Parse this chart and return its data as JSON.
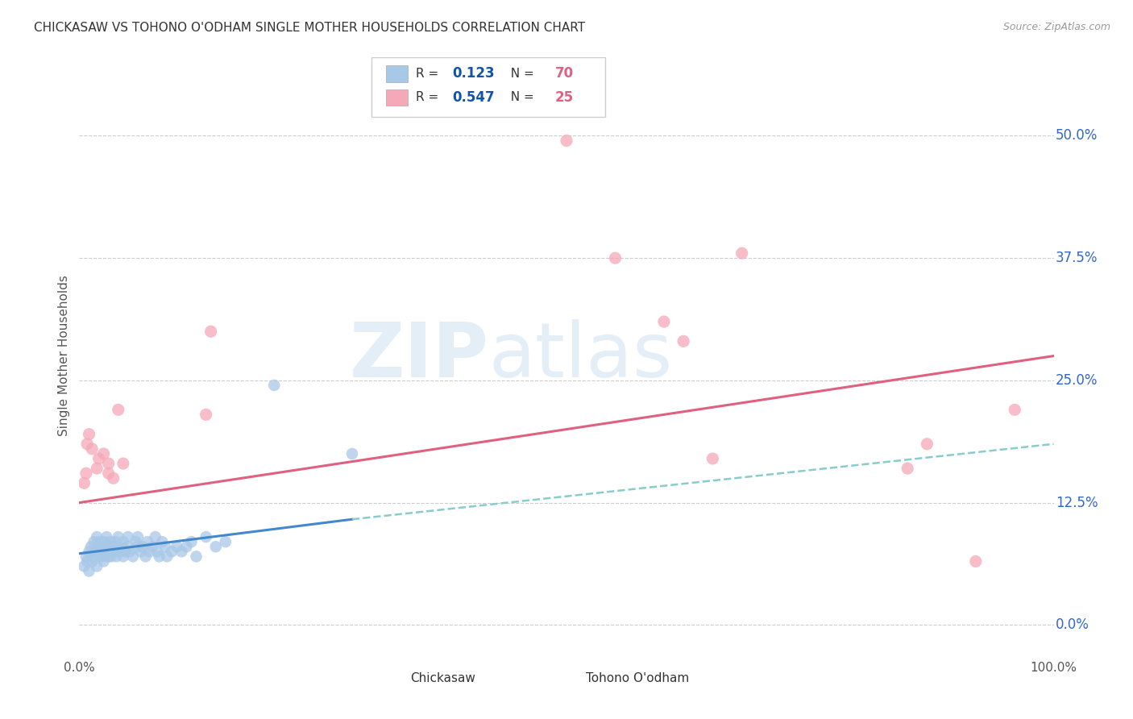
{
  "title": "CHICKASAW VS TOHONO O'ODHAM SINGLE MOTHER HOUSEHOLDS CORRELATION CHART",
  "source": "Source: ZipAtlas.com",
  "ylabel": "Single Mother Households",
  "xlim": [
    0,
    1.0
  ],
  "ylim": [
    -0.03,
    0.58
  ],
  "yticks": [
    0.0,
    0.125,
    0.25,
    0.375,
    0.5
  ],
  "ytick_labels": [
    "0.0%",
    "12.5%",
    "25.0%",
    "37.5%",
    "50.0%"
  ],
  "xticks": [
    0.0,
    0.25,
    0.5,
    0.75,
    1.0
  ],
  "xtick_labels": [
    "0.0%",
    "",
    "",
    "",
    "100.0%"
  ],
  "background_color": "#ffffff",
  "grid_color": "#cccccc",
  "chickasaw_color": "#a8c8e8",
  "tohono_color": "#f5a8b8",
  "chickasaw_R": 0.123,
  "chickasaw_N": 70,
  "tohono_R": 0.547,
  "tohono_N": 25,
  "chickasaw_line_color": "#4488cc",
  "tohono_line_color": "#e06080",
  "dashed_line_color": "#88cccc",
  "legend_R_color": "#1155aa",
  "legend_N_color": "#e06080",
  "chickasaw_x": [
    0.005,
    0.007,
    0.008,
    0.01,
    0.01,
    0.012,
    0.013,
    0.015,
    0.015,
    0.017,
    0.018,
    0.018,
    0.02,
    0.02,
    0.02,
    0.022,
    0.022,
    0.023,
    0.025,
    0.025,
    0.025,
    0.027,
    0.028,
    0.028,
    0.03,
    0.03,
    0.032,
    0.032,
    0.033,
    0.035,
    0.035,
    0.037,
    0.038,
    0.04,
    0.04,
    0.042,
    0.043,
    0.045,
    0.045,
    0.047,
    0.05,
    0.05,
    0.052,
    0.055,
    0.058,
    0.06,
    0.06,
    0.063,
    0.065,
    0.068,
    0.07,
    0.072,
    0.075,
    0.078,
    0.08,
    0.082,
    0.085,
    0.088,
    0.09,
    0.095,
    0.1,
    0.105,
    0.11,
    0.115,
    0.12,
    0.13,
    0.14,
    0.15,
    0.2,
    0.28
  ],
  "chickasaw_y": [
    0.06,
    0.07,
    0.065,
    0.075,
    0.055,
    0.08,
    0.065,
    0.085,
    0.07,
    0.075,
    0.06,
    0.09,
    0.075,
    0.08,
    0.085,
    0.07,
    0.075,
    0.08,
    0.085,
    0.065,
    0.07,
    0.08,
    0.075,
    0.09,
    0.07,
    0.08,
    0.075,
    0.085,
    0.07,
    0.08,
    0.075,
    0.085,
    0.07,
    0.08,
    0.09,
    0.075,
    0.08,
    0.085,
    0.07,
    0.075,
    0.08,
    0.09,
    0.075,
    0.07,
    0.085,
    0.08,
    0.09,
    0.075,
    0.08,
    0.07,
    0.085,
    0.075,
    0.08,
    0.09,
    0.075,
    0.07,
    0.085,
    0.08,
    0.07,
    0.075,
    0.08,
    0.075,
    0.08,
    0.085,
    0.07,
    0.09,
    0.08,
    0.085,
    0.245,
    0.175
  ],
  "tohono_x": [
    0.005,
    0.007,
    0.008,
    0.01,
    0.013,
    0.018,
    0.02,
    0.025,
    0.03,
    0.03,
    0.035,
    0.04,
    0.045,
    0.13,
    0.135,
    0.5,
    0.55,
    0.6,
    0.62,
    0.65,
    0.68,
    0.85,
    0.87,
    0.92,
    0.96
  ],
  "tohono_y": [
    0.145,
    0.155,
    0.185,
    0.195,
    0.18,
    0.16,
    0.17,
    0.175,
    0.155,
    0.165,
    0.15,
    0.22,
    0.165,
    0.215,
    0.3,
    0.495,
    0.375,
    0.31,
    0.29,
    0.17,
    0.38,
    0.16,
    0.185,
    0.065,
    0.22
  ],
  "chickasaw_line_x0": 0.0,
  "chickasaw_line_x1": 0.28,
  "chickasaw_line_y0": 0.073,
  "chickasaw_line_y1": 0.108,
  "tohono_line_x0": 0.0,
  "tohono_line_x1": 1.0,
  "tohono_line_y0": 0.125,
  "tohono_line_y1": 0.275,
  "dashed_line_x0": 0.28,
  "dashed_line_x1": 1.0,
  "dashed_line_y0": 0.108,
  "dashed_line_y1": 0.185
}
